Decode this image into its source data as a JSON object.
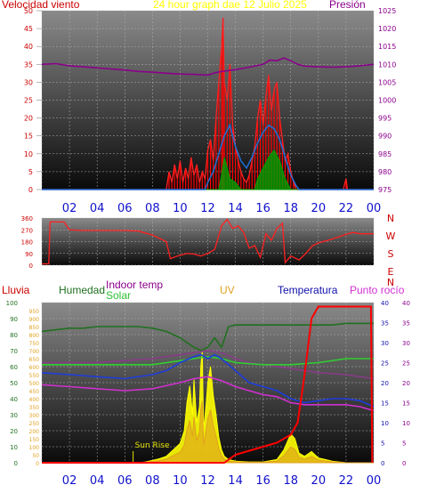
{
  "top": {
    "wind_label": "Velocidad viento",
    "title": "24 hour graph dae   12 Julio 2025",
    "pressure_label": "Presión",
    "wind_ticks": [
      0,
      5,
      10,
      15,
      20,
      25,
      30,
      35,
      40,
      45,
      50
    ],
    "pressure_ticks": [
      975,
      980,
      985,
      990,
      995,
      1000,
      1005,
      1010,
      1015,
      1020,
      1025
    ],
    "x_labels": [
      "02",
      "04",
      "06",
      "08",
      "10",
      "12",
      "14",
      "16",
      "18",
      "20",
      "22",
      "00"
    ],
    "colors": {
      "wind": "#ff0000",
      "gust": "#ff2020",
      "avg": "#1e6fd8",
      "dir_green": "#00a000",
      "pressure": "#8b008b"
    },
    "pressure": [
      [
        0,
        1010
      ],
      [
        1,
        1010.2
      ],
      [
        2,
        1009.6
      ],
      [
        3,
        1009.3
      ],
      [
        4,
        1009
      ],
      [
        5,
        1008.7
      ],
      [
        6,
        1008.4
      ],
      [
        7,
        1008
      ],
      [
        8,
        1007.8
      ],
      [
        9,
        1007.5
      ],
      [
        10,
        1007.3
      ],
      [
        11,
        1007.2
      ],
      [
        12,
        1007
      ],
      [
        12.5,
        1007.6
      ],
      [
        13,
        1008
      ],
      [
        14,
        1008.5
      ],
      [
        15,
        1009.2
      ],
      [
        16,
        1010
      ],
      [
        16.5,
        1011.2
      ],
      [
        17,
        1011
      ],
      [
        17.5,
        1011.8
      ],
      [
        18,
        1011
      ],
      [
        18.5,
        1010
      ],
      [
        19,
        1009.5
      ],
      [
        20,
        1009.3
      ],
      [
        21,
        1009.2
      ],
      [
        22,
        1009.3
      ],
      [
        23,
        1009.6
      ],
      [
        24,
        1010
      ]
    ],
    "wind": [
      [
        0,
        0
      ],
      [
        9,
        0
      ],
      [
        9.2,
        5
      ],
      [
        9.4,
        2
      ],
      [
        9.6,
        7
      ],
      [
        9.8,
        3
      ],
      [
        10,
        8
      ],
      [
        10.2,
        2
      ],
      [
        10.4,
        6
      ],
      [
        10.6,
        3
      ],
      [
        10.8,
        9
      ],
      [
        11,
        4
      ],
      [
        11.2,
        7
      ],
      [
        11.4,
        2
      ],
      [
        11.6,
        5
      ],
      [
        11.8,
        3
      ],
      [
        12,
        11
      ],
      [
        12.2,
        14
      ],
      [
        12.4,
        8
      ],
      [
        12.6,
        20
      ],
      [
        12.8,
        30
      ],
      [
        13,
        40
      ],
      [
        13.1,
        48
      ],
      [
        13.2,
        30
      ],
      [
        13.4,
        25
      ],
      [
        13.6,
        35
      ],
      [
        13.8,
        18
      ],
      [
        14,
        12
      ],
      [
        14.2,
        8
      ],
      [
        14.4,
        5
      ],
      [
        14.6,
        3
      ],
      [
        14.8,
        2
      ],
      [
        15,
        4
      ],
      [
        15.2,
        8
      ],
      [
        15.4,
        12
      ],
      [
        15.6,
        20
      ],
      [
        15.8,
        25
      ],
      [
        16,
        18
      ],
      [
        16.2,
        26
      ],
      [
        16.4,
        32
      ],
      [
        16.6,
        22
      ],
      [
        16.8,
        28
      ],
      [
        17,
        30
      ],
      [
        17.2,
        20
      ],
      [
        17.4,
        14
      ],
      [
        17.6,
        8
      ],
      [
        17.8,
        10
      ],
      [
        18,
        5
      ],
      [
        18.2,
        2
      ],
      [
        18.4,
        0
      ],
      [
        21.8,
        0
      ],
      [
        22,
        3
      ],
      [
        22.1,
        0
      ],
      [
        24,
        0
      ]
    ],
    "wind_avg": [
      [
        0,
        0
      ],
      [
        11.8,
        0
      ],
      [
        12,
        2
      ],
      [
        12.4,
        5
      ],
      [
        12.8,
        10
      ],
      [
        13.2,
        15
      ],
      [
        13.6,
        18
      ],
      [
        14,
        12
      ],
      [
        14.4,
        8
      ],
      [
        14.8,
        6
      ],
      [
        15.2,
        9
      ],
      [
        15.6,
        13
      ],
      [
        16,
        16
      ],
      [
        16.4,
        18
      ],
      [
        16.8,
        17
      ],
      [
        17.2,
        14
      ],
      [
        17.6,
        9
      ],
      [
        18,
        4
      ],
      [
        18.4,
        1
      ],
      [
        18.6,
        0
      ],
      [
        24,
        0
      ]
    ],
    "wind_green": [
      [
        0,
        0
      ],
      [
        12.8,
        0
      ],
      [
        13,
        4
      ],
      [
        13.2,
        9
      ],
      [
        13.4,
        6
      ],
      [
        13.6,
        3
      ],
      [
        14,
        2
      ],
      [
        14.4,
        0
      ],
      [
        15.4,
        0
      ],
      [
        15.6,
        3
      ],
      [
        16,
        6
      ],
      [
        16.4,
        9
      ],
      [
        16.8,
        11
      ],
      [
        17.2,
        8
      ],
      [
        17.6,
        3
      ],
      [
        18,
        0
      ],
      [
        24,
        0
      ]
    ]
  },
  "dir": {
    "ticks": [
      0,
      90,
      180,
      270,
      360
    ],
    "compass": [
      "N",
      "W",
      "S",
      "E",
      "N"
    ],
    "series": [
      [
        0,
        10
      ],
      [
        0.5,
        10
      ],
      [
        0.6,
        330
      ],
      [
        1.6,
        330
      ],
      [
        2,
        270
      ],
      [
        3,
        265
      ],
      [
        4,
        265
      ],
      [
        5,
        265
      ],
      [
        6,
        265
      ],
      [
        7,
        260
      ],
      [
        8,
        230
      ],
      [
        9,
        180
      ],
      [
        9.3,
        50
      ],
      [
        9.8,
        70
      ],
      [
        10.5,
        90
      ],
      [
        11,
        85
      ],
      [
        11.5,
        70
      ],
      [
        12,
        90
      ],
      [
        12.5,
        120
      ],
      [
        13,
        300
      ],
      [
        13.4,
        350
      ],
      [
        13.8,
        280
      ],
      [
        14.2,
        300
      ],
      [
        14.6,
        250
      ],
      [
        15,
        130
      ],
      [
        15.4,
        150
      ],
      [
        15.8,
        60
      ],
      [
        16.2,
        240
      ],
      [
        16.6,
        190
      ],
      [
        17,
        280
      ],
      [
        17.4,
        320
      ],
      [
        17.6,
        20
      ],
      [
        18,
        70
      ],
      [
        18.6,
        40
      ],
      [
        19,
        80
      ],
      [
        19.6,
        150
      ],
      [
        20,
        170
      ],
      [
        21,
        200
      ],
      [
        22,
        235
      ],
      [
        22.5,
        250
      ],
      [
        23,
        240
      ],
      [
        24,
        240
      ]
    ]
  },
  "bottom": {
    "labels": {
      "rain": "Lluvia",
      "humidity": "Humedad",
      "indoor": "Indoor temp",
      "solar": "Solar",
      "uv": "UV",
      "temp": "Temperatura",
      "dew": "Punto rocío"
    },
    "sunrise_label": "Sun Rise",
    "hum_ticks": [
      0,
      10,
      20,
      30,
      40,
      50,
      60,
      70,
      80,
      90,
      100
    ],
    "solar_ticks": [
      0,
      50,
      100,
      150,
      200,
      250,
      300,
      350,
      400,
      450,
      500,
      550,
      600,
      650,
      700,
      750,
      800,
      850,
      900,
      950
    ],
    "temp_ticks": [
      0,
      5,
      10,
      15,
      20,
      25,
      30,
      35,
      40
    ],
    "colors": {
      "humidity": "#207020",
      "indoor": "#30d030",
      "solar": "#ffff00",
      "uv": "#e0a020",
      "temp": "#1e3cdc",
      "dew": "#d030d0",
      "rain": "#ff0000",
      "feels": "#8b3a8b"
    },
    "humidity": [
      [
        0,
        82
      ],
      [
        1,
        83
      ],
      [
        2,
        84
      ],
      [
        3,
        84
      ],
      [
        4,
        85
      ],
      [
        5,
        85
      ],
      [
        6,
        85
      ],
      [
        7,
        85
      ],
      [
        8,
        84
      ],
      [
        9,
        82
      ],
      [
        10,
        78
      ],
      [
        11,
        72
      ],
      [
        11.5,
        70
      ],
      [
        12,
        72
      ],
      [
        12.5,
        78
      ],
      [
        13,
        72
      ],
      [
        13.5,
        85
      ],
      [
        14,
        86
      ],
      [
        15,
        86
      ],
      [
        16,
        86
      ],
      [
        17,
        86
      ],
      [
        18,
        86
      ],
      [
        19,
        86
      ],
      [
        20,
        86
      ],
      [
        21,
        86
      ],
      [
        22,
        87
      ],
      [
        23,
        87
      ],
      [
        24,
        87
      ]
    ],
    "indoor": [
      [
        0,
        24.5
      ],
      [
        2,
        24.5
      ],
      [
        4,
        24.5
      ],
      [
        6,
        24.5
      ],
      [
        8,
        24.5
      ],
      [
        10,
        25.5
      ],
      [
        11,
        26
      ],
      [
        12,
        26.5
      ],
      [
        13,
        26
      ],
      [
        14,
        25
      ],
      [
        16,
        24.5
      ],
      [
        18,
        24.5
      ],
      [
        20,
        25
      ],
      [
        22,
        26
      ],
      [
        24,
        26
      ]
    ],
    "temp": [
      [
        0,
        22.5
      ],
      [
        2,
        22
      ],
      [
        4,
        21.5
      ],
      [
        6,
        21
      ],
      [
        8,
        22
      ],
      [
        9,
        23
      ],
      [
        10,
        25
      ],
      [
        11,
        26.5
      ],
      [
        11.5,
        27
      ],
      [
        12,
        26
      ],
      [
        12.5,
        27
      ],
      [
        13,
        26
      ],
      [
        14,
        23
      ],
      [
        15,
        20
      ],
      [
        16,
        19
      ],
      [
        17,
        18
      ],
      [
        18,
        16
      ],
      [
        19,
        15
      ],
      [
        20,
        15.5
      ],
      [
        21,
        16
      ],
      [
        22,
        16
      ],
      [
        23,
        15.5
      ],
      [
        24,
        14
      ]
    ],
    "feels": [
      [
        0,
        25
      ],
      [
        2,
        25
      ],
      [
        4,
        25
      ],
      [
        6,
        25.5
      ],
      [
        8,
        26
      ],
      [
        10,
        27
      ],
      [
        12,
        28
      ],
      [
        13,
        27.5
      ],
      [
        14,
        26
      ],
      [
        15,
        25
      ],
      [
        16,
        24.5
      ],
      [
        17,
        24
      ],
      [
        18,
        23.5
      ],
      [
        19,
        23
      ],
      [
        20,
        22.5
      ],
      [
        22,
        22
      ],
      [
        24,
        21
      ]
    ],
    "dew": [
      [
        0,
        19.5
      ],
      [
        2,
        19
      ],
      [
        4,
        18.5
      ],
      [
        6,
        18
      ],
      [
        8,
        18.5
      ],
      [
        10,
        20
      ],
      [
        11,
        21
      ],
      [
        12,
        21.5
      ],
      [
        13,
        20.5
      ],
      [
        14,
        19
      ],
      [
        15,
        18
      ],
      [
        16,
        17
      ],
      [
        17,
        16.5
      ],
      [
        18,
        15
      ],
      [
        19,
        14.5
      ],
      [
        20,
        14.5
      ],
      [
        21,
        14.5
      ],
      [
        22,
        14.5
      ],
      [
        23,
        14
      ],
      [
        24,
        13
      ]
    ],
    "rain": [
      [
        0,
        0
      ],
      [
        13.2,
        0
      ],
      [
        14,
        2
      ],
      [
        15,
        3
      ],
      [
        16,
        4
      ],
      [
        17,
        5
      ],
      [
        17.5,
        6
      ],
      [
        18,
        7
      ],
      [
        18.5,
        10
      ],
      [
        19,
        22
      ],
      [
        19.5,
        36
      ],
      [
        20,
        39
      ],
      [
        23.8,
        39
      ],
      [
        23.9,
        0
      ]
    ],
    "solar": [
      [
        0,
        0
      ],
      [
        7,
        0
      ],
      [
        7.5,
        5
      ],
      [
        8,
        15
      ],
      [
        8.5,
        25
      ],
      [
        9,
        40
      ],
      [
        9.5,
        80
      ],
      [
        10,
        120
      ],
      [
        10.3,
        200
      ],
      [
        10.5,
        380
      ],
      [
        10.7,
        480
      ],
      [
        10.9,
        300
      ],
      [
        11,
        520
      ],
      [
        11.2,
        250
      ],
      [
        11.4,
        350
      ],
      [
        11.5,
        600
      ],
      [
        11.6,
        700
      ],
      [
        11.7,
        200
      ],
      [
        11.9,
        380
      ],
      [
        12,
        500
      ],
      [
        12.2,
        600
      ],
      [
        12.4,
        420
      ],
      [
        12.6,
        300
      ],
      [
        12.8,
        160
      ],
      [
        13,
        80
      ],
      [
        13.2,
        40
      ],
      [
        13.5,
        20
      ],
      [
        14,
        10
      ],
      [
        15,
        5
      ],
      [
        16,
        5
      ],
      [
        17,
        20
      ],
      [
        17.5,
        80
      ],
      [
        18,
        180
      ],
      [
        18.3,
        150
      ],
      [
        18.6,
        60
      ],
      [
        19,
        40
      ],
      [
        19.5,
        70
      ],
      [
        20,
        30
      ],
      [
        20.5,
        20
      ],
      [
        21,
        10
      ],
      [
        21.5,
        5
      ],
      [
        22,
        0
      ],
      [
        24,
        0
      ]
    ]
  }
}
